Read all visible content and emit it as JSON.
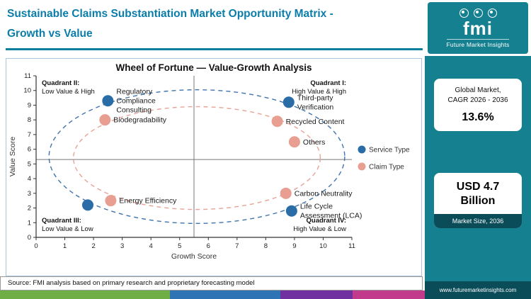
{
  "header": {
    "title_line1": "Sustainable Claims Substantiation Market Opportunity Matrix -",
    "title_line2": "Growth vs Value"
  },
  "logo": {
    "brand": "fmi",
    "brand_name": "Future Market Insights"
  },
  "sidebar": {
    "cagr_label_line1": "Global Market,",
    "cagr_label_line2": "CAGR 2026 - 2036",
    "cagr_value": "13.6%",
    "market_size_value": "USD 4.7 Billion",
    "market_size_label": "Market Size, 2036",
    "website": "www.futuremarketinsights.com"
  },
  "source": "Source: FMI analysis based on primary research and proprietary forecasting model",
  "colors": {
    "teal": "#15808f",
    "dark_teal": "#0b4c59",
    "title_blue": "#0a7dab",
    "service_type": "#2a6da6",
    "claim_type": "#e89e90"
  },
  "footer": {
    "stripes": [
      {
        "color": "#6fae44",
        "width_pct": 40
      },
      {
        "color": "#2e74b5",
        "width_pct": 26
      },
      {
        "color": "#7030a0",
        "width_pct": 17
      },
      {
        "color": "#c13a8c",
        "width_pct": 17
      }
    ]
  },
  "chart_data": {
    "type": "scatter",
    "title": "Wheel of Fortune — Value-Growth Analysis",
    "xlabel": "Growth Score",
    "ylabel": "Value Score",
    "xlim": [
      0,
      11
    ],
    "ylim": [
      0,
      11
    ],
    "xticks": [
      0,
      1,
      2,
      3,
      4,
      5,
      6,
      7,
      8,
      9,
      10,
      11
    ],
    "yticks": [
      0,
      1,
      2,
      3,
      4,
      5,
      6,
      7,
      8,
      9,
      10,
      11
    ],
    "grid": false,
    "legend_position": "right-middle",
    "quadrant_center": [
      5.5,
      5.3
    ],
    "quadrants": [
      {
        "label": "Quadrant II:",
        "desc": "Low Value & High",
        "position": "top-left"
      },
      {
        "label": "Quadrant I:",
        "desc": "High Value & High",
        "position": "top-right"
      },
      {
        "label": "Quadrant III:",
        "desc": "Low Value & Low",
        "position": "bottom-left"
      },
      {
        "label": "Quadrant IV:",
        "desc": "High Value & Low",
        "position": "bottom-right"
      }
    ],
    "series": [
      {
        "name": "Service Type",
        "color": "#2a6da6",
        "points": [
          {
            "x": 2.5,
            "y": 9.3,
            "label": "Regulatory Compliance Consulting",
            "lines": [
              "Regulatory",
              "Compliance",
              "Consulting"
            ]
          },
          {
            "x": 8.8,
            "y": 9.2,
            "label": "Third-party Verification",
            "lines": [
              "Third-party",
              "Verification"
            ]
          },
          {
            "x": 8.9,
            "y": 1.8,
            "label": "Life Cycle Assessment (LCA)",
            "lines": [
              "Life Cycle",
              "Assessment (LCA)"
            ]
          },
          {
            "x": 1.8,
            "y": 2.2,
            "label": "",
            "lines": []
          }
        ]
      },
      {
        "name": "Claim Type",
        "color": "#e89e90",
        "points": [
          {
            "x": 2.4,
            "y": 8.0,
            "label": "Biodegradability",
            "lines": [
              "Biodegradability"
            ]
          },
          {
            "x": 8.4,
            "y": 7.9,
            "label": "Recycled Content",
            "lines": [
              "Recycled Content"
            ]
          },
          {
            "x": 9.0,
            "y": 6.5,
            "label": "Others",
            "lines": [
              "Others"
            ]
          },
          {
            "x": 8.7,
            "y": 3.0,
            "label": "Carbon Neutrality",
            "lines": [
              "Carbon Neutrality"
            ]
          },
          {
            "x": 2.6,
            "y": 2.5,
            "label": "Energy Efficiency",
            "lines": [
              "Energy Efficiency"
            ]
          }
        ]
      }
    ],
    "rings": [
      {
        "series": "Service Type",
        "color": "#3f74ad",
        "cx": 5.6,
        "cy": 5.5,
        "rx": 5.15,
        "ry": 4.55
      },
      {
        "series": "Claim Type",
        "color": "#e7a396",
        "cx": 5.6,
        "cy": 5.4,
        "rx": 4.3,
        "ry": 3.5
      }
    ]
  }
}
